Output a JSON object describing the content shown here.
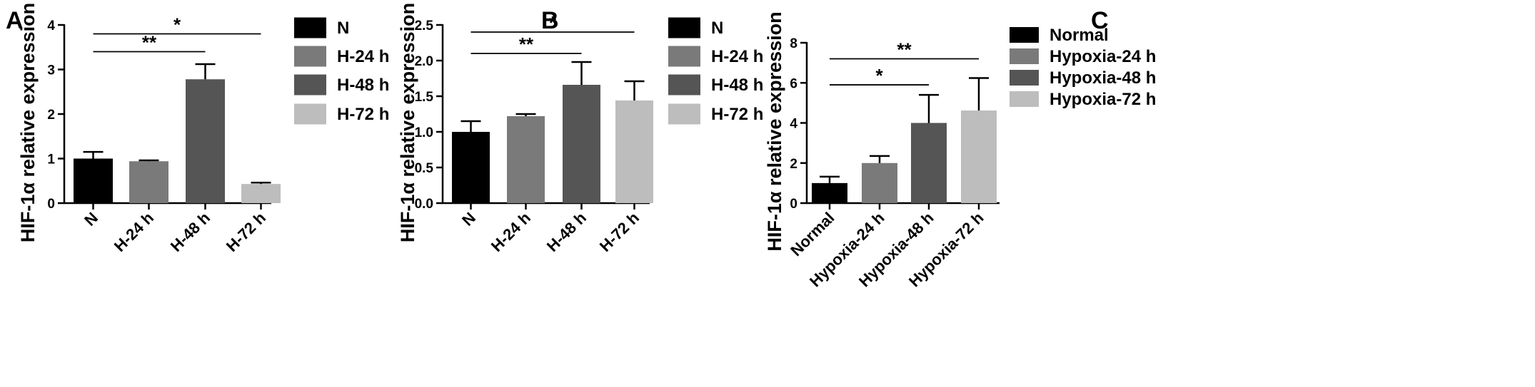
{
  "chart_data": [
    {
      "type": "bar",
      "panel_label": "A",
      "ylabel": "HIF-1α relative expression",
      "ylim": [
        0,
        4
      ],
      "yticks": [
        "0",
        "1",
        "2",
        "3",
        "4"
      ],
      "categories": [
        "N",
        "H-24 h",
        "H-48 h",
        "H-72 h"
      ],
      "values": [
        1.0,
        0.94,
        2.78,
        0.43
      ],
      "errors": [
        0.15,
        0.02,
        0.34,
        0.03
      ],
      "colors": [
        "#000000",
        "#7a7a7a",
        "#555555",
        "#bdbdbd"
      ],
      "legend": [
        "N",
        "H-24 h",
        "H-48 h",
        "H-72 h"
      ],
      "legend_position": "right",
      "significance": [
        {
          "from": 0,
          "to": 3,
          "label": "*",
          "y": 3.8
        },
        {
          "from": 0,
          "to": 2,
          "label": "**",
          "y": 3.4
        }
      ]
    },
    {
      "type": "bar",
      "panel_label": "B",
      "ylabel": "HIF-1α relative expression",
      "ylim": [
        0,
        2.5
      ],
      "yticks": [
        "0.0",
        "0.5",
        "1.0",
        "1.5",
        "2.0",
        "2.5"
      ],
      "categories": [
        "N",
        "H-24 h",
        "H-48 h",
        "H-72 h"
      ],
      "values": [
        1.0,
        1.22,
        1.66,
        1.44
      ],
      "errors": [
        0.15,
        0.03,
        0.32,
        0.27
      ],
      "colors": [
        "#000000",
        "#7a7a7a",
        "#555555",
        "#bdbdbd"
      ],
      "legend": [
        "N",
        "H-24 h",
        "H-48 h",
        "H-72 h"
      ],
      "legend_position": "right",
      "significance": [
        {
          "from": 0,
          "to": 3,
          "label": "*",
          "y": 2.4
        },
        {
          "from": 0,
          "to": 2,
          "label": "**",
          "y": 2.1
        }
      ]
    },
    {
      "type": "bar",
      "panel_label": "C",
      "ylabel": "HIF-1α relative expression",
      "ylim": [
        0,
        8
      ],
      "yticks": [
        "0",
        "2",
        "4",
        "6",
        "8"
      ],
      "categories": [
        "Normal",
        "Hypoxia-24 h",
        "Hypoxia-48 h",
        "Hypoxia-72 h"
      ],
      "values": [
        1.0,
        2.0,
        4.0,
        4.62
      ],
      "errors": [
        0.32,
        0.35,
        1.4,
        1.62
      ],
      "colors": [
        "#000000",
        "#7a7a7a",
        "#555555",
        "#bdbdbd"
      ],
      "legend": [
        "Normal",
        "Hypoxia-24 h",
        "Hypoxia-48 h",
        "Hypoxia-72 h"
      ],
      "legend_position": "right",
      "significance": [
        {
          "from": 0,
          "to": 3,
          "label": "**",
          "y": 7.2
        },
        {
          "from": 0,
          "to": 2,
          "label": "*",
          "y": 5.9
        }
      ]
    }
  ]
}
